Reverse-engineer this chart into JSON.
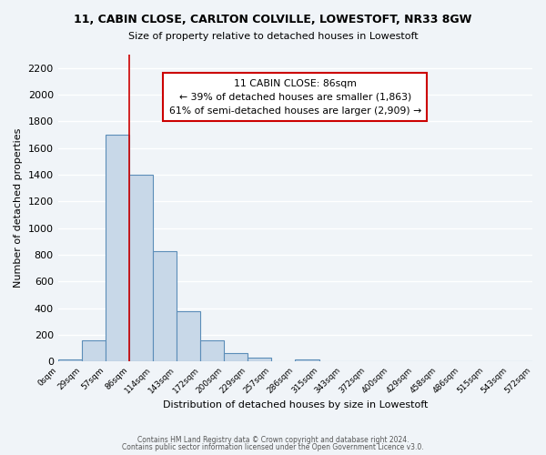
{
  "title1": "11, CABIN CLOSE, CARLTON COLVILLE, LOWESTOFT, NR33 8GW",
  "title2": "Size of property relative to detached houses in Lowestoft",
  "xlabel": "Distribution of detached houses by size in Lowestoft",
  "ylabel": "Number of detached properties",
  "bin_edges": [
    0,
    29,
    57,
    86,
    114,
    143,
    172,
    200,
    229,
    257,
    286,
    315,
    343,
    372,
    400,
    429,
    458,
    486,
    515,
    543,
    572
  ],
  "bar_heights": [
    20,
    160,
    1700,
    1400,
    830,
    380,
    160,
    65,
    30,
    0,
    20,
    0,
    0,
    0,
    0,
    0,
    0,
    0,
    0,
    0
  ],
  "bar_color": "#c8d8e8",
  "bar_edge_color": "#5b8db8",
  "property_line_x": 86,
  "property_label": "11 CABIN CLOSE: 86sqm",
  "annotation_line1": "← 39% of detached houses are smaller (1,863)",
  "annotation_line2": "61% of semi-detached houses are larger (2,909) →",
  "annotation_box_color": "#ffffff",
  "annotation_box_edge": "#cc0000",
  "vline_color": "#cc0000",
  "ylim": [
    0,
    2300
  ],
  "yticks": [
    0,
    200,
    400,
    600,
    800,
    1000,
    1200,
    1400,
    1600,
    1800,
    2000,
    2200
  ],
  "footnote1": "Contains HM Land Registry data © Crown copyright and database right 2024.",
  "footnote2": "Contains public sector information licensed under the Open Government Licence v3.0.",
  "background_color": "#f0f4f8",
  "grid_color": "#ffffff"
}
